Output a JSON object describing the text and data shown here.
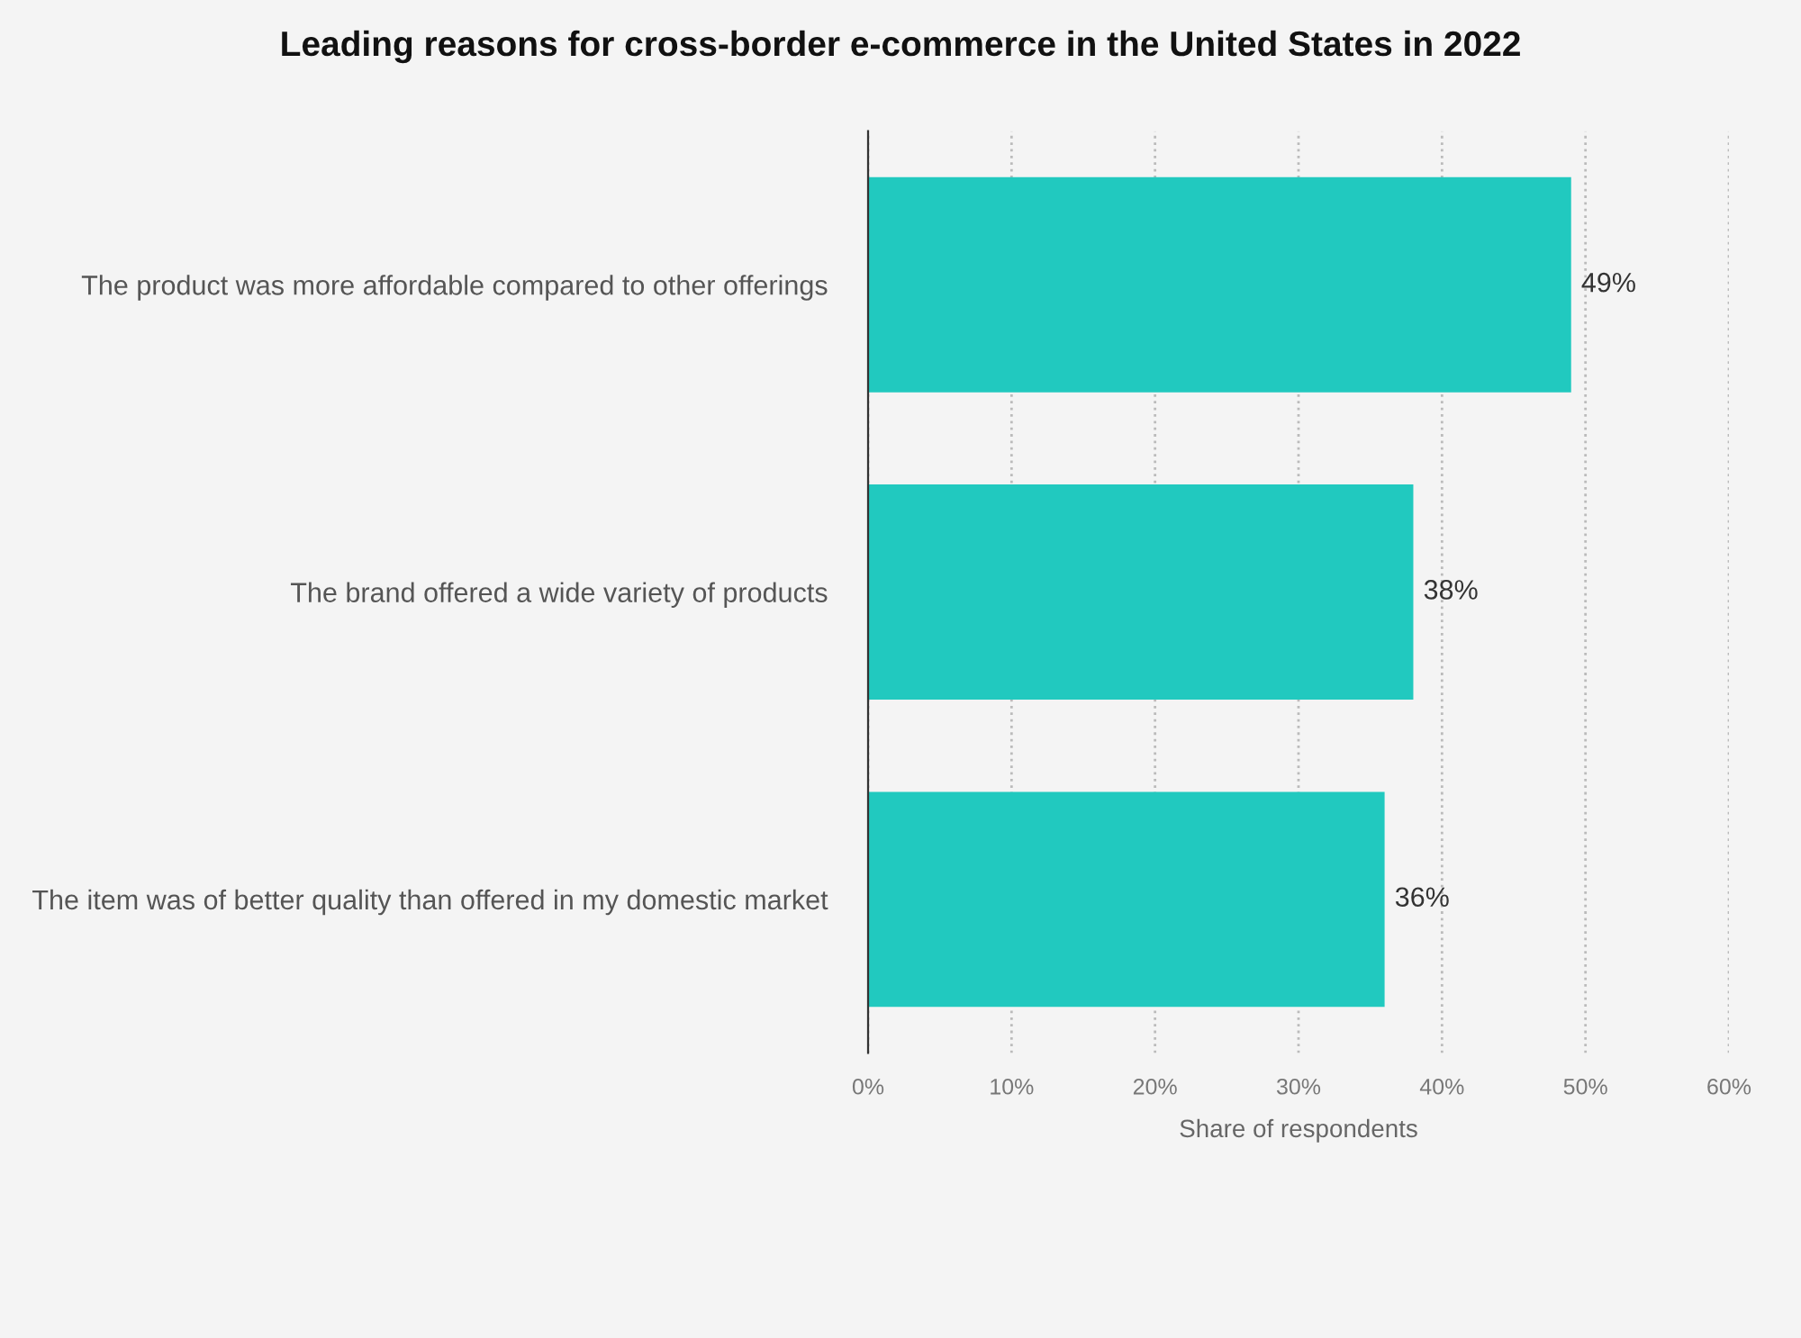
{
  "chart_data": {
    "type": "bar",
    "orientation": "horizontal",
    "title": "Leading reasons for cross-border e-commerce in the United States in 2022",
    "xlabel": "Share of respondents",
    "categories": [
      "The product was more affordable compared to other offerings",
      "The brand offered a wide variety of products",
      "The item was of better quality than offered in my domestic market"
    ],
    "values": [
      49,
      38,
      36
    ],
    "value_labels": [
      "49%",
      "38%",
      "36%"
    ],
    "color": "#21c9bf",
    "xlim": [
      0,
      60
    ],
    "xticks": [
      {
        "value": 0,
        "label": "0%"
      },
      {
        "value": 10,
        "label": "10%"
      },
      {
        "value": 20,
        "label": "20%"
      },
      {
        "value": 30,
        "label": "30%"
      },
      {
        "value": 40,
        "label": "40%"
      },
      {
        "value": 50,
        "label": "50%"
      },
      {
        "value": 60,
        "label": "60%"
      }
    ],
    "grid": "x"
  }
}
